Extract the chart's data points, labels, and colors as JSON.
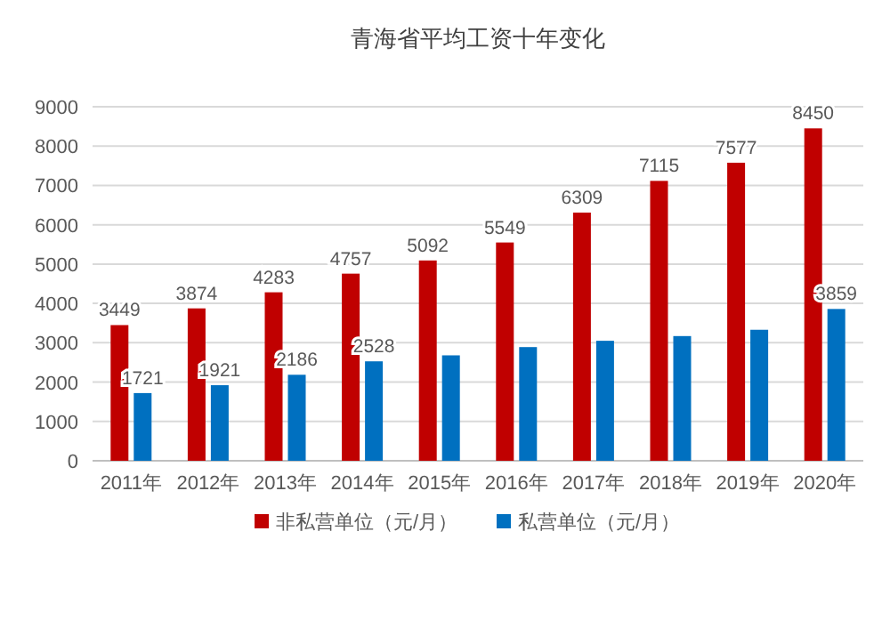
{
  "chart_data": {
    "type": "bar",
    "title": "青海省平均工资十年变化",
    "categories": [
      "2011年",
      "2012年",
      "2013年",
      "2014年",
      "2015年",
      "2016年",
      "2017年",
      "2018年",
      "2019年",
      "2020年"
    ],
    "series": [
      {
        "name": "非私营单位（元/月）",
        "color": "#c00000",
        "values": [
          3449,
          3874,
          4283,
          4757,
          5092,
          5549,
          6309,
          7115,
          7577,
          8450
        ],
        "value_labels": [
          "3449",
          "3874",
          "4283",
          "4757",
          "5092",
          "5549",
          "6309",
          "7115",
          "7577",
          "8450"
        ]
      },
      {
        "name": "私营单位（元/月）",
        "color": "#0070c0",
        "values": [
          1721,
          1921,
          2186,
          2528,
          2680,
          2890,
          3050,
          3170,
          3330,
          3859
        ],
        "value_labels": [
          "1721",
          "1921",
          "2186",
          "2528",
          null,
          null,
          null,
          null,
          null,
          "3859"
        ]
      }
    ],
    "ylim": [
      0,
      9000
    ],
    "yticks": [
      0,
      1000,
      2000,
      3000,
      4000,
      5000,
      6000,
      7000,
      8000,
      9000
    ],
    "grid": "y",
    "legend": "bottom"
  }
}
